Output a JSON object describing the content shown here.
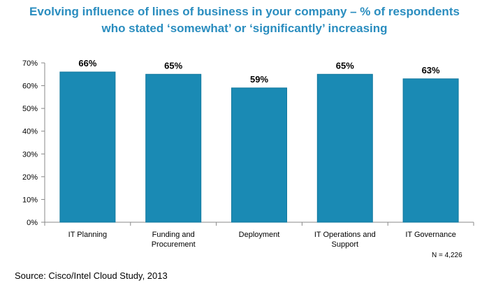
{
  "title_line1": "Evolving influence of lines of business in your company – % of respondents",
  "title_line2": "who stated ‘somewhat’ or ‘significantly’ increasing",
  "sample_note": "N = 4,226",
  "source": "Source: Cisco/Intel Cloud Study, 2013",
  "colors": {
    "bar": "#1a8ab4",
    "bar_edge": "#12789e",
    "title": "#2a8dbf",
    "axis": "#888888"
  },
  "chart_data": {
    "type": "bar",
    "title": "Evolving influence of lines of business in your company – % of respondents who stated ‘somewhat’ or ‘significantly’ increasing",
    "categories": [
      [
        "IT Planning"
      ],
      [
        "Funding and",
        "Procurement"
      ],
      [
        "Deployment"
      ],
      [
        "IT Operations and",
        "Support"
      ],
      [
        "IT Governance"
      ]
    ],
    "values": [
      66,
      65,
      59,
      65,
      63
    ],
    "data_labels": [
      "66%",
      "65%",
      "59%",
      "65%",
      "63%"
    ],
    "y_ticks": [
      0,
      10,
      20,
      30,
      40,
      50,
      60,
      70
    ],
    "y_tick_labels": [
      "0%",
      "10%",
      "20%",
      "30%",
      "40%",
      "50%",
      "60%",
      "70%"
    ],
    "ylim": [
      0,
      70
    ],
    "grid": false,
    "legend": "none"
  }
}
